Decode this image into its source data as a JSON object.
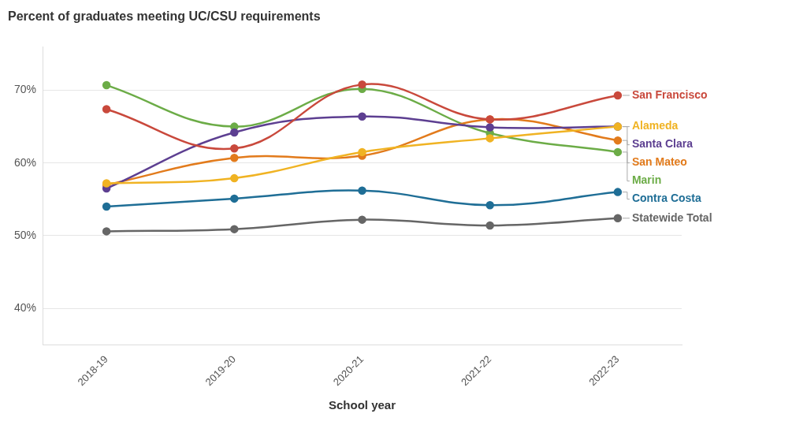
{
  "chart_data": {
    "type": "line",
    "title": "Percent of graduates meeting UC/CSU requirements",
    "xlabel": "School year",
    "categories": [
      "2018-19",
      "2019-20",
      "2020-21",
      "2021-22",
      "2022-23"
    ],
    "series": [
      {
        "name": "San Francisco",
        "color": "#c9493c",
        "values": [
          67.4,
          62.0,
          70.8,
          66.0,
          69.3
        ]
      },
      {
        "name": "Alameda",
        "color": "#f0b323",
        "values": [
          57.2,
          57.9,
          61.5,
          63.4,
          65.0
        ]
      },
      {
        "name": "Santa Clara",
        "color": "#5d3f91",
        "values": [
          56.5,
          64.2,
          66.4,
          64.9,
          65.0
        ]
      },
      {
        "name": "San Mateo",
        "color": "#e27b1c",
        "values": [
          57.0,
          60.7,
          61.0,
          66.0,
          63.1
        ]
      },
      {
        "name": "Marin",
        "color": "#6cac47",
        "values": [
          70.7,
          65.0,
          70.2,
          64.1,
          61.5
        ]
      },
      {
        "name": "Contra Costa",
        "color": "#1f6e96",
        "values": [
          54.0,
          55.1,
          56.2,
          54.2,
          56.0
        ]
      },
      {
        "name": "Statewide Total",
        "color": "#666666",
        "values": [
          50.6,
          50.9,
          52.2,
          51.4,
          52.4
        ]
      }
    ],
    "ylim": [
      35,
      76
    ],
    "yticks": [
      {
        "value": 40,
        "label": "40%"
      },
      {
        "value": 50,
        "label": "50%"
      },
      {
        "value": 60,
        "label": "60%"
      },
      {
        "value": 70,
        "label": "70%"
      }
    ],
    "grid": true,
    "marker": "circle",
    "line_style": "solid"
  }
}
